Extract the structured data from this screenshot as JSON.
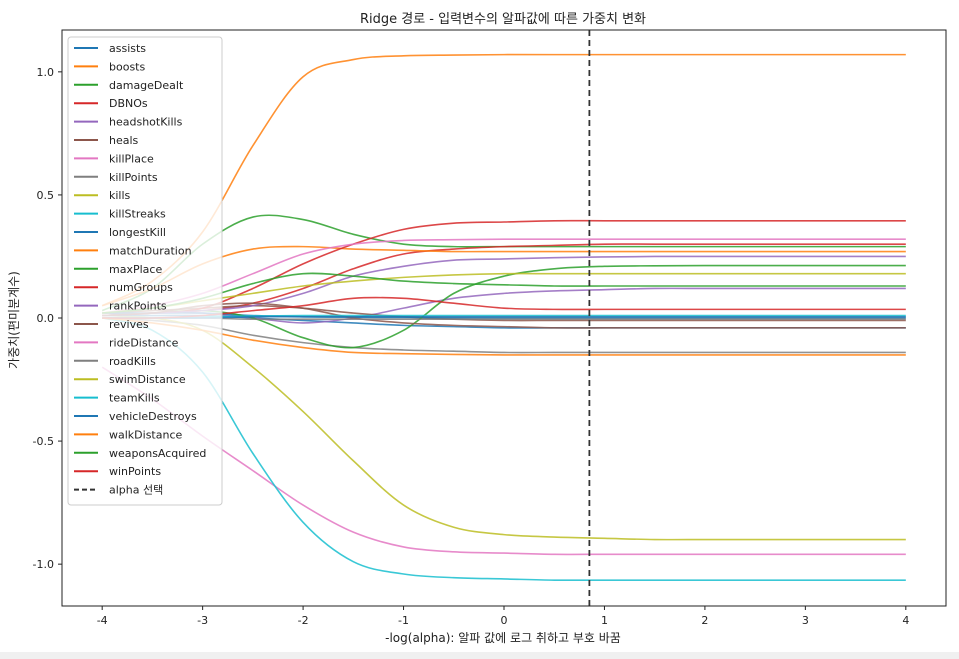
{
  "chart_data": {
    "type": "line",
    "title": "Ridge 경로 - 입력변수의 알파값에 따른 가중치 변화",
    "xlabel": "-log(alpha): 알파 값에 로그 취하고 부호 바꿈",
    "ylabel": "가중치(편미분계수)",
    "xlim": [
      -4.4,
      4.4
    ],
    "ylim": [
      -1.17,
      1.17
    ],
    "xticks": [
      -4,
      -3,
      -2,
      -1,
      0,
      1,
      2,
      3,
      4
    ],
    "yticks": [
      -1.0,
      -0.5,
      0.0,
      0.5,
      1.0
    ],
    "xtick_labels": [
      "-4",
      "-3",
      "-2",
      "-1",
      "0",
      "1",
      "2",
      "3",
      "4"
    ],
    "ytick_labels": [
      "-1.0",
      "-0.5",
      "0.0",
      "0.5",
      "1.0"
    ],
    "grid": false,
    "legend_position": "upper-left",
    "x": [
      -4,
      -3.5,
      -3,
      -2.5,
      -2,
      -1.5,
      -1,
      -0.5,
      0,
      0.5,
      1,
      1.5,
      2,
      2.5,
      3,
      3.5,
      4
    ],
    "series": [
      {
        "name": "assists",
        "color": "#1f77b4",
        "values": [
          0.01,
          0.01,
          0.01,
          0.0,
          -0.01,
          -0.02,
          -0.03,
          -0.035,
          -0.04,
          -0.04,
          -0.04,
          -0.04,
          -0.04,
          -0.04,
          -0.04,
          -0.04,
          -0.04
        ]
      },
      {
        "name": "boosts",
        "color": "#ff7f0e",
        "values": [
          0.05,
          0.15,
          0.35,
          0.7,
          0.98,
          1.05,
          1.065,
          1.068,
          1.07,
          1.07,
          1.07,
          1.07,
          1.07,
          1.07,
          1.07,
          1.07,
          1.07
        ]
      },
      {
        "name": "damageDealt",
        "color": "#2ca02c",
        "values": [
          0.03,
          0.12,
          0.3,
          0.41,
          0.4,
          0.34,
          0.3,
          0.29,
          0.29,
          0.29,
          0.29,
          0.29,
          0.29,
          0.29,
          0.29,
          0.29,
          0.29
        ]
      },
      {
        "name": "DBNOs",
        "color": "#d62728",
        "values": [
          0.02,
          0.02,
          0.03,
          0.06,
          0.12,
          0.2,
          0.26,
          0.28,
          0.29,
          0.295,
          0.3,
          0.3,
          0.3,
          0.3,
          0.3,
          0.3,
          0.3
        ]
      },
      {
        "name": "headshotKills",
        "color": "#9467bd",
        "values": [
          0.01,
          0.02,
          0.02,
          0.0,
          -0.02,
          0.0,
          0.04,
          0.08,
          0.1,
          0.11,
          0.115,
          0.12,
          0.12,
          0.12,
          0.12,
          0.12,
          0.12
        ]
      },
      {
        "name": "heals",
        "color": "#8c564b",
        "values": [
          0.02,
          0.03,
          0.04,
          0.05,
          0.04,
          0.02,
          0.005,
          -0.005,
          -0.01,
          -0.01,
          -0.01,
          -0.01,
          -0.01,
          -0.01,
          -0.01,
          -0.01,
          -0.01
        ]
      },
      {
        "name": "killPlace",
        "color": "#e377c2",
        "values": [
          -0.2,
          -0.33,
          -0.48,
          -0.62,
          -0.76,
          -0.87,
          -0.93,
          -0.95,
          -0.955,
          -0.96,
          -0.96,
          -0.96,
          -0.96,
          -0.96,
          -0.96,
          -0.96,
          -0.96
        ]
      },
      {
        "name": "killPoints",
        "color": "#7f7f7f",
        "values": [
          0.0,
          -0.01,
          -0.03,
          -0.07,
          -0.1,
          -0.12,
          -0.13,
          -0.135,
          -0.14,
          -0.14,
          -0.14,
          -0.14,
          -0.14,
          -0.14,
          -0.14,
          -0.14,
          -0.14
        ]
      },
      {
        "name": "kills",
        "color": "#bcbd22",
        "values": [
          0.0,
          0.0,
          -0.05,
          -0.2,
          -0.38,
          -0.58,
          -0.76,
          -0.85,
          -0.88,
          -0.89,
          -0.895,
          -0.9,
          -0.9,
          -0.9,
          -0.9,
          -0.9,
          -0.9
        ]
      },
      {
        "name": "killStreaks",
        "color": "#17becf",
        "values": [
          0.0,
          -0.05,
          -0.22,
          -0.55,
          -0.83,
          -0.99,
          -1.04,
          -1.055,
          -1.06,
          -1.065,
          -1.065,
          -1.065,
          -1.065,
          -1.065,
          -1.065,
          -1.065,
          -1.065
        ]
      },
      {
        "name": "longestKill",
        "color": "#1f77b4",
        "values": [
          0.02,
          0.02,
          0.02,
          0.01,
          0.005,
          0.003,
          0.002,
          0.001,
          0.0,
          0.0,
          0.0,
          0.0,
          0.0,
          0.0,
          0.0,
          0.0,
          0.0
        ]
      },
      {
        "name": "matchDuration",
        "color": "#ff7f0e",
        "values": [
          0.05,
          0.12,
          0.22,
          0.28,
          0.29,
          0.28,
          0.275,
          0.27,
          0.27,
          0.27,
          0.27,
          0.27,
          0.27,
          0.27,
          0.27,
          0.27,
          0.27
        ]
      },
      {
        "name": "maxPlace",
        "color": "#2ca02c",
        "values": [
          0.01,
          0.02,
          0.03,
          0.0,
          -0.08,
          -0.12,
          -0.05,
          0.1,
          0.17,
          0.2,
          0.21,
          0.212,
          0.213,
          0.213,
          0.213,
          0.213,
          0.213
        ]
      },
      {
        "name": "numGroups",
        "color": "#d62728",
        "values": [
          0.01,
          0.02,
          0.04,
          0.12,
          0.22,
          0.3,
          0.36,
          0.385,
          0.39,
          0.395,
          0.395,
          0.395,
          0.395,
          0.395,
          0.395,
          0.395,
          0.395
        ]
      },
      {
        "name": "rankPoints",
        "color": "#9467bd",
        "values": [
          0.01,
          0.02,
          0.03,
          0.05,
          0.1,
          0.17,
          0.21,
          0.235,
          0.24,
          0.245,
          0.248,
          0.25,
          0.25,
          0.25,
          0.25,
          0.25,
          0.25
        ]
      },
      {
        "name": "revives",
        "color": "#8c564b",
        "values": [
          0.01,
          0.02,
          0.05,
          0.06,
          0.04,
          0.0,
          -0.02,
          -0.03,
          -0.035,
          -0.04,
          -0.04,
          -0.04,
          -0.04,
          -0.04,
          -0.04,
          -0.04,
          -0.04
        ]
      },
      {
        "name": "rideDistance",
        "color": "#e377c2",
        "values": [
          0.02,
          0.05,
          0.1,
          0.18,
          0.26,
          0.3,
          0.315,
          0.318,
          0.32,
          0.32,
          0.32,
          0.32,
          0.32,
          0.32,
          0.32,
          0.32,
          0.32
        ]
      },
      {
        "name": "roadKills",
        "color": "#7f7f7f",
        "values": [
          0.0,
          0.0,
          0.0,
          -0.005,
          -0.005,
          -0.005,
          -0.005,
          -0.005,
          -0.005,
          -0.005,
          -0.005,
          -0.005,
          -0.005,
          -0.005,
          -0.005,
          -0.005,
          -0.005
        ]
      },
      {
        "name": "swimDistance",
        "color": "#bcbd22",
        "values": [
          0.02,
          0.04,
          0.07,
          0.1,
          0.13,
          0.15,
          0.165,
          0.175,
          0.18,
          0.18,
          0.18,
          0.18,
          0.18,
          0.18,
          0.18,
          0.18,
          0.18
        ]
      },
      {
        "name": "teamKills",
        "color": "#17becf",
        "values": [
          0.0,
          0.0,
          0.005,
          0.008,
          0.01,
          0.01,
          0.01,
          0.01,
          0.01,
          0.01,
          0.01,
          0.01,
          0.01,
          0.01,
          0.01,
          0.01,
          0.01
        ]
      },
      {
        "name": "vehicleDestroys",
        "color": "#1f77b4",
        "values": [
          0.0,
          0.0,
          0.0,
          0.005,
          0.005,
          0.005,
          0.005,
          0.005,
          0.005,
          0.005,
          0.005,
          0.005,
          0.005,
          0.005,
          0.005,
          0.005,
          0.005
        ]
      },
      {
        "name": "walkDistance",
        "color": "#ff7f0e",
        "values": [
          0.0,
          -0.02,
          -0.05,
          -0.09,
          -0.12,
          -0.14,
          -0.145,
          -0.148,
          -0.15,
          -0.15,
          -0.15,
          -0.15,
          -0.15,
          -0.15,
          -0.15,
          -0.15,
          -0.15
        ]
      },
      {
        "name": "weaponsAcquired",
        "color": "#2ca02c",
        "values": [
          0.02,
          0.04,
          0.08,
          0.14,
          0.18,
          0.17,
          0.15,
          0.14,
          0.135,
          0.13,
          0.13,
          0.13,
          0.13,
          0.13,
          0.13,
          0.13,
          0.13
        ]
      },
      {
        "name": "winPoints",
        "color": "#d62728",
        "values": [
          0.0,
          0.0,
          0.01,
          0.03,
          0.05,
          0.08,
          0.08,
          0.06,
          0.04,
          0.035,
          0.035,
          0.035,
          0.035,
          0.035,
          0.035,
          0.035,
          0.035
        ]
      }
    ],
    "vline": {
      "x": 0.85,
      "label": "alpha 선택",
      "color": "#333333",
      "style": "dashed"
    }
  }
}
